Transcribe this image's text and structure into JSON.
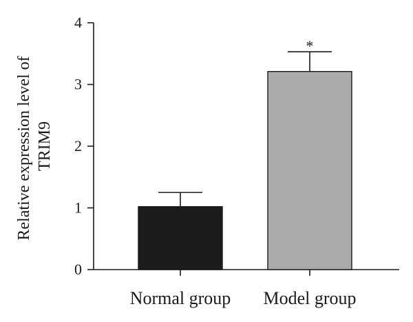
{
  "chart_data": {
    "type": "bar",
    "title": "",
    "xlabel": "",
    "ylabel_lines": [
      "Relative expression level of",
      "TRIM9"
    ],
    "categories": [
      "Normal group",
      "Model group"
    ],
    "values": [
      1.02,
      3.21
    ],
    "errors": [
      0.23,
      0.32
    ],
    "bar_colors": [
      "#1c1c1c",
      "#ababab"
    ],
    "annotations": [
      "",
      "*"
    ],
    "ylim": [
      0,
      4
    ],
    "yticks": [
      0,
      1,
      2,
      3,
      4
    ],
    "grid": false,
    "legend": "none"
  }
}
